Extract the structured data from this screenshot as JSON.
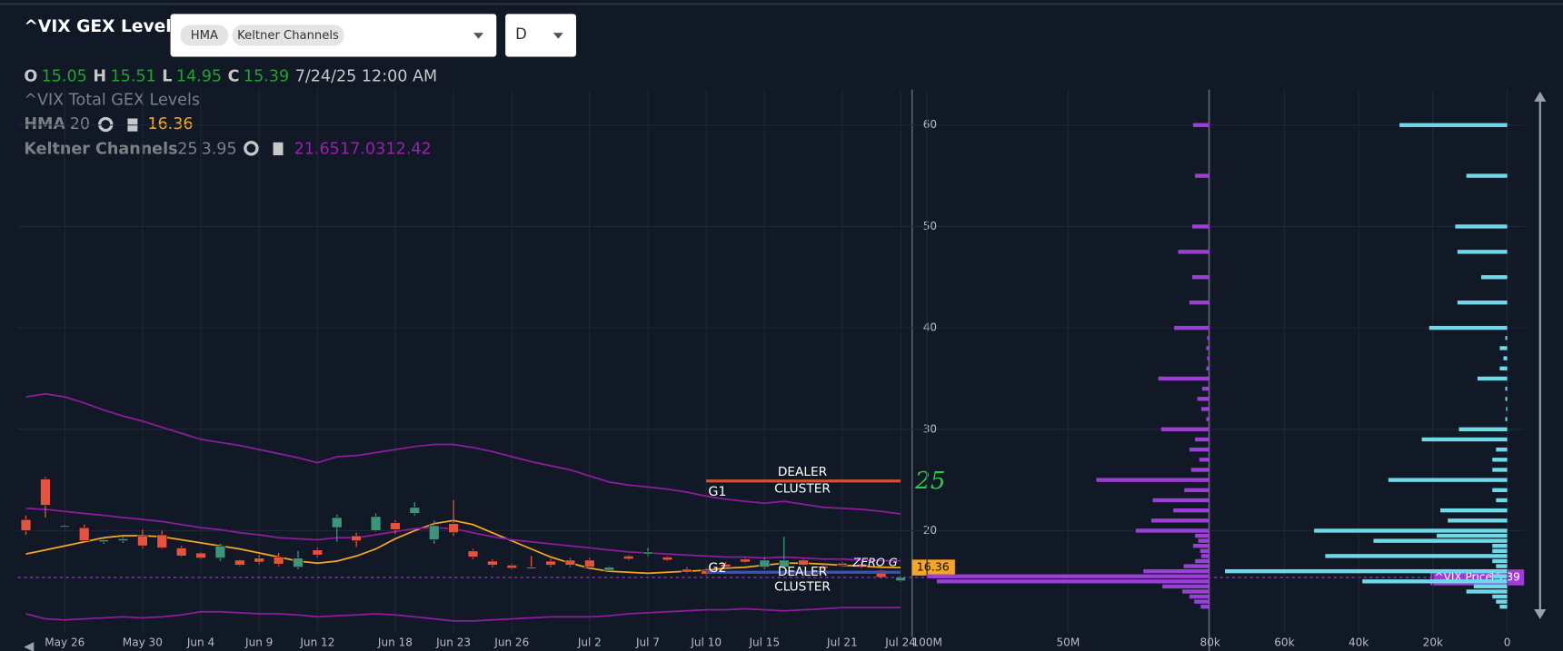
{
  "header": {
    "title": "^VIX GEX Levels",
    "indicators": [
      "HMA",
      "Keltner Channels"
    ],
    "interval": "D",
    "ohlc_labels": [
      "O",
      "H",
      "L",
      "C"
    ],
    "date": "7/24/25 12:00 AM",
    "study": "^VIX Total GEX Levels",
    "hma": {
      "name": "HMA",
      "length": 20
    },
    "keltner": {
      "name": "Keltner Channels",
      "length": 25,
      "multiplier": 3.95
    }
  },
  "chart_data": [
    {
      "type": "candlestick",
      "categories": [
        null,
        null,
        "May 26",
        null,
        null,
        null,
        "May 30",
        null,
        null,
        "Jun 4",
        null,
        null,
        "Jun 9",
        null,
        null,
        "Jun 12",
        null,
        null,
        null,
        "Jun 18",
        null,
        null,
        "Jun 23",
        null,
        null,
        "Jun 26",
        null,
        null,
        null,
        "Jul 2",
        null,
        null,
        "Jul 7",
        null,
        null,
        "Jul 10",
        null,
        null,
        "Jul 15",
        null,
        null,
        null,
        "Jul 21",
        null,
        null,
        "Jul 24"
      ],
      "open": [
        21.1,
        25.1,
        20.4,
        20.3,
        18.9,
        19.0,
        19.5,
        19.6,
        18.3,
        17.8,
        17.3,
        17.1,
        17.3,
        17.4,
        16.4,
        18.1,
        20.3,
        19.5,
        20.0,
        20.8,
        21.7,
        19.1,
        20.7,
        18.0,
        17.0,
        16.6,
        16.4,
        17.0,
        17.1,
        17.1,
        16.1,
        17.5,
        17.7,
        17.4,
        16.2,
        16.1,
        16.7,
        17.2,
        16.4,
        16.4,
        17.1,
        16.5,
        16.8,
        16.7,
        16.1,
        15.05
      ],
      "high": [
        21.5,
        25.3,
        20.6,
        20.6,
        19.3,
        19.5,
        20.1,
        20.0,
        18.5,
        17.9,
        18.7,
        17.2,
        17.6,
        17.8,
        18.0,
        18.3,
        21.6,
        19.8,
        21.7,
        21.0,
        22.8,
        21.0,
        23.0,
        18.2,
        17.2,
        16.7,
        17.5,
        17.2,
        17.3,
        17.3,
        16.5,
        17.6,
        18.3,
        17.5,
        16.4,
        16.3,
        16.9,
        17.3,
        17.4,
        19.4,
        17.2,
        16.7,
        16.9,
        16.9,
        16.2,
        15.51
      ],
      "low": [
        19.6,
        21.3,
        20.3,
        18.9,
        18.7,
        18.8,
        18.3,
        18.2,
        17.4,
        17.2,
        17.0,
        16.5,
        16.7,
        16.5,
        16.2,
        17.4,
        18.9,
        18.4,
        19.9,
        19.7,
        21.5,
        18.7,
        19.5,
        17.2,
        16.4,
        16.2,
        16.2,
        16.4,
        16.4,
        16.2,
        16.0,
        17.1,
        17.5,
        17.0,
        15.8,
        15.6,
        16.3,
        16.8,
        16.2,
        16.3,
        16.5,
        16.2,
        16.5,
        16.3,
        15.3,
        14.95
      ],
      "close": [
        20.0,
        22.5,
        20.5,
        19.0,
        19.1,
        19.2,
        18.5,
        18.3,
        17.5,
        17.3,
        18.5,
        16.6,
        16.9,
        16.7,
        17.3,
        17.6,
        21.3,
        19.0,
        21.4,
        20.1,
        22.3,
        20.5,
        19.8,
        17.4,
        16.6,
        16.3,
        16.3,
        16.6,
        16.6,
        16.4,
        16.4,
        17.2,
        17.9,
        17.1,
        15.9,
        15.7,
        16.4,
        16.9,
        17.1,
        17.1,
        16.6,
        16.3,
        16.6,
        16.4,
        15.4,
        15.39
      ],
      "up_color": "#3d9478",
      "down_color": "#e5533d",
      "lines": [
        {
          "color": "#f5a623",
          "values": [
            17.7,
            18.1,
            18.5,
            18.9,
            19.3,
            19.5,
            19.5,
            19.4,
            19.1,
            18.8,
            18.5,
            18.2,
            17.8,
            17.4,
            17.0,
            16.8,
            17.0,
            17.5,
            18.2,
            19.2,
            20.0,
            20.7,
            21.0,
            20.6,
            19.8,
            19.0,
            18.2,
            17.4,
            16.8,
            16.3,
            16.0,
            15.9,
            15.8,
            15.9,
            16.0,
            16.1,
            16.3,
            16.4,
            16.6,
            16.8,
            16.8,
            16.7,
            16.6,
            16.5,
            16.4,
            16.36
          ]
        },
        {
          "color": "#8e1c9e",
          "values": [
            33.2,
            33.5,
            33.2,
            32.6,
            31.9,
            31.3,
            30.8,
            30.2,
            29.6,
            29.0,
            28.7,
            28.4,
            28.0,
            27.6,
            27.2,
            26.7,
            27.3,
            27.4,
            27.7,
            28.0,
            28.3,
            28.5,
            28.5,
            28.2,
            27.8,
            27.3,
            26.8,
            26.4,
            26.0,
            25.4,
            24.8,
            24.5,
            24.3,
            24.1,
            23.8,
            23.4,
            23.1,
            22.9,
            22.7,
            22.9,
            22.6,
            22.3,
            22.2,
            22.1,
            21.9,
            21.65
          ]
        },
        {
          "color": "#8e1c9e",
          "values": [
            22.2,
            22.1,
            21.9,
            21.7,
            21.5,
            21.3,
            21.1,
            20.9,
            20.6,
            20.3,
            20.1,
            19.8,
            19.6,
            19.3,
            19.2,
            19.1,
            19.3,
            19.3,
            19.6,
            19.9,
            20.2,
            20.3,
            20.2,
            19.8,
            19.4,
            19.1,
            18.9,
            18.7,
            18.5,
            18.3,
            18.1,
            17.9,
            17.8,
            17.7,
            17.6,
            17.5,
            17.4,
            17.4,
            17.3,
            17.4,
            17.3,
            17.2,
            17.2,
            17.1,
            17.05,
            17.03
          ]
        },
        {
          "color": "#8e1c9e",
          "values": [
            11.8,
            11.3,
            11.2,
            11.3,
            11.4,
            11.5,
            11.4,
            11.5,
            11.7,
            12.0,
            12.0,
            11.9,
            11.8,
            11.8,
            11.7,
            11.5,
            11.6,
            11.7,
            11.8,
            11.7,
            11.5,
            11.3,
            11.1,
            11.1,
            11.2,
            11.3,
            11.4,
            11.5,
            11.5,
            11.5,
            11.6,
            11.8,
            11.9,
            12.0,
            12.1,
            12.2,
            12.2,
            12.3,
            12.2,
            12.1,
            12.2,
            12.3,
            12.4,
            12.4,
            12.4,
            12.42
          ]
        }
      ],
      "ylim": [
        9.9,
        63.5
      ],
      "yticks": [
        20,
        30,
        40,
        50,
        60
      ],
      "grid": true,
      "levels": [
        {
          "name": "G1",
          "lines": [
            "DEALER",
            "CLUSTER"
          ],
          "value": 24.9,
          "color": "#d2532f"
        },
        {
          "name": "G2",
          "lines": [
            "DEALER",
            "CLUSTER"
          ],
          "value": 15.9,
          "color": "#3f51b5"
        }
      ],
      "zero_gamma": {
        "label": "ZERO G",
        "value": 16.8
      },
      "note": {
        "text": "25",
        "color": "#2ecc40"
      },
      "price_line": {
        "label": "^VIX Price",
        "value": 15.39,
        "color": "#a23bd6"
      }
    },
    {
      "type": "barh",
      "y": [
        60,
        55,
        50,
        47.5,
        45,
        42.5,
        40,
        39,
        38,
        37,
        36,
        35,
        34,
        33,
        32,
        31,
        30,
        29,
        28,
        27,
        26,
        25,
        24,
        23,
        22,
        21,
        20,
        19.5,
        19,
        18.5,
        18,
        17.5,
        17,
        16.5,
        16,
        15.5,
        15,
        14.5,
        14,
        13.5,
        13,
        12.5
      ],
      "ylim": [
        9.9,
        63.5
      ],
      "series": [
        {
          "color": "#9b3fd6",
          "xlim": [
            100000000.0,
            0
          ],
          "xticks": [
            {
              "value": 100000000.0,
              "label": "100M"
            },
            {
              "value": 50000000.0,
              "label": "50M"
            }
          ],
          "values": [
            5700000.0,
            5000000.0,
            6000000.0,
            11000000.0,
            6000000.0,
            7000000.0,
            12400000.0,
            700000.0,
            1000000.0,
            700000.0,
            1000000.0,
            18000000.0,
            2500000.0,
            4200000.0,
            2800000.0,
            1000000.0,
            17000000.0,
            5000000.0,
            7000000.0,
            3500000.0,
            6400000.0,
            40000000.0,
            8800000.0,
            20000000.0,
            12700000.0,
            20500000.0,
            26000000.0,
            5000000.0,
            3900000.0,
            5700000.0,
            3200000.0,
            2800000.0,
            5000000.0,
            9000000.0,
            23300000.0,
            100000000.0,
            96500000.0,
            16600000.0,
            9500000.0,
            7000000.0,
            5300000.0,
            3000000.0
          ]
        },
        {
          "color": "#6fd9e8",
          "xlim": [
            80000,
            0
          ],
          "xticks": [
            {
              "value": 80000,
              "label": "80k"
            },
            {
              "value": 60000,
              "label": "60k"
            },
            {
              "value": 40000,
              "label": "40k"
            },
            {
              "value": 20000,
              "label": "20k"
            },
            0
          ],
          "values": [
            29000.0,
            11000.0,
            14000.0,
            13400.0,
            7000.0,
            13400.0,
            21000.0,
            500.0,
            2000.0,
            1000.0,
            2000.0,
            8000.0,
            500.0,
            500.0,
            300.0,
            500.0,
            13000.0,
            23000.0,
            3000.0,
            4000.0,
            4000.0,
            32000.0,
            4000.0,
            3000.0,
            18000.0,
            16000.0,
            52000.0,
            19000.0,
            36000.0,
            4000.0,
            4000.0,
            49000.0,
            4000.0,
            3000.0,
            76000.0,
            4000.0,
            39000.0,
            9000.0,
            11000.0,
            4000.0,
            3000.0,
            2000.0
          ]
        }
      ]
    }
  ]
}
